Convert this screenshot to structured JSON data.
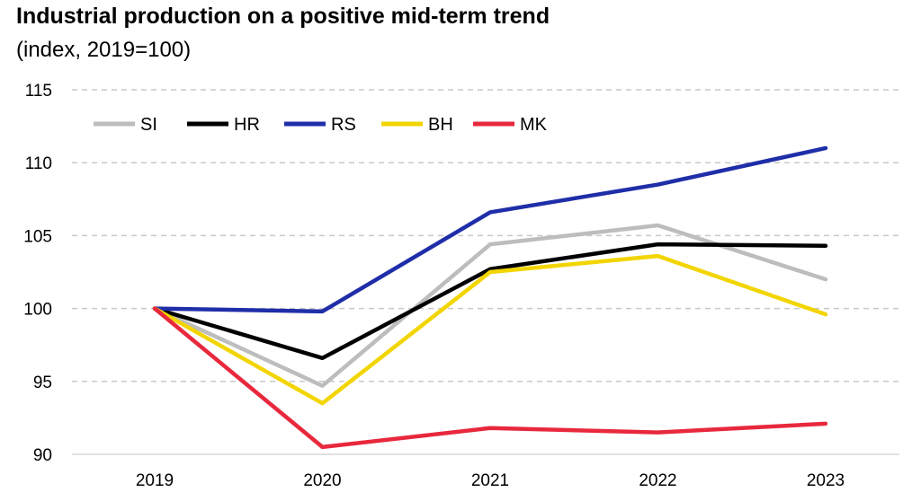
{
  "chart_data": {
    "type": "line",
    "title": "Industrial production on a positive mid-term trend",
    "subtitle": "(index, 2019=100)",
    "xlabel": "",
    "ylabel": "",
    "x": [
      "2019",
      "2020",
      "2021",
      "2022",
      "2023"
    ],
    "ylim": [
      90,
      115
    ],
    "yticks": [
      90,
      95,
      100,
      105,
      110,
      115
    ],
    "grid": true,
    "legend_position": "top-left",
    "series": [
      {
        "name": "SI",
        "color": "#BDBDBD",
        "values": [
          100,
          94.7,
          104.4,
          105.7,
          102.0
        ]
      },
      {
        "name": "HR",
        "color": "#000000",
        "values": [
          100,
          96.6,
          102.7,
          104.4,
          104.3
        ]
      },
      {
        "name": "RS",
        "color": "#1F2EA8",
        "values": [
          100,
          99.8,
          106.6,
          108.5,
          111.0
        ]
      },
      {
        "name": "BH",
        "color": "#F2D500",
        "values": [
          100,
          93.5,
          102.5,
          103.6,
          99.6
        ]
      },
      {
        "name": "MK",
        "color": "#E8283C",
        "values": [
          100,
          90.5,
          91.8,
          91.5,
          92.1
        ]
      }
    ]
  }
}
